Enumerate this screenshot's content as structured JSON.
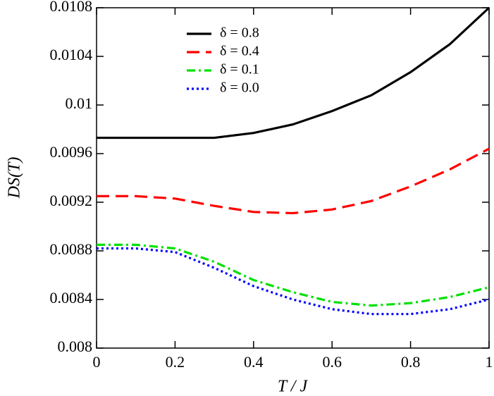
{
  "chart_data": {
    "type": "line",
    "x_label": "T / J",
    "y_label": "DS(T)",
    "x": [
      0,
      0.1,
      0.2,
      0.3,
      0.4,
      0.5,
      0.6,
      0.7,
      0.8,
      0.9,
      1
    ],
    "series": [
      {
        "name": "δ = 0.8",
        "color": "#000000",
        "dash": "solid",
        "values": [
          0.00973,
          0.00973,
          0.00973,
          0.00973,
          0.00977,
          0.00984,
          0.00995,
          0.01008,
          0.01027,
          0.0105,
          0.0108
        ]
      },
      {
        "name": "δ = 0.4",
        "color": "#ff0000",
        "dash": "dashed",
        "values": [
          0.00925,
          0.00925,
          0.00923,
          0.00917,
          0.00912,
          0.00911,
          0.00914,
          0.00921,
          0.00933,
          0.00947,
          0.00964
        ]
      },
      {
        "name": "δ = 0.1",
        "color": "#00e000",
        "dash": "dashdot",
        "values": [
          0.00885,
          0.00885,
          0.00882,
          0.00871,
          0.00856,
          0.00846,
          0.00838,
          0.00835,
          0.00837,
          0.00842,
          0.0085
        ]
      },
      {
        "name": "δ = 0.0",
        "color": "#0000ff",
        "dash": "dotted",
        "values": [
          0.00882,
          0.00882,
          0.00879,
          0.00866,
          0.00851,
          0.0084,
          0.00832,
          0.00828,
          0.00828,
          0.00832,
          0.0084
        ]
      }
    ],
    "xlim": [
      0,
      1
    ],
    "xticks": [
      0,
      0.2,
      0.4,
      0.6,
      0.8,
      1
    ],
    "ylim": [
      0.008,
      0.0108
    ],
    "yticks": [
      0.008,
      0.0084,
      0.0088,
      0.0092,
      0.0096,
      0.01,
      0.0104,
      0.0108
    ],
    "grid": false
  }
}
